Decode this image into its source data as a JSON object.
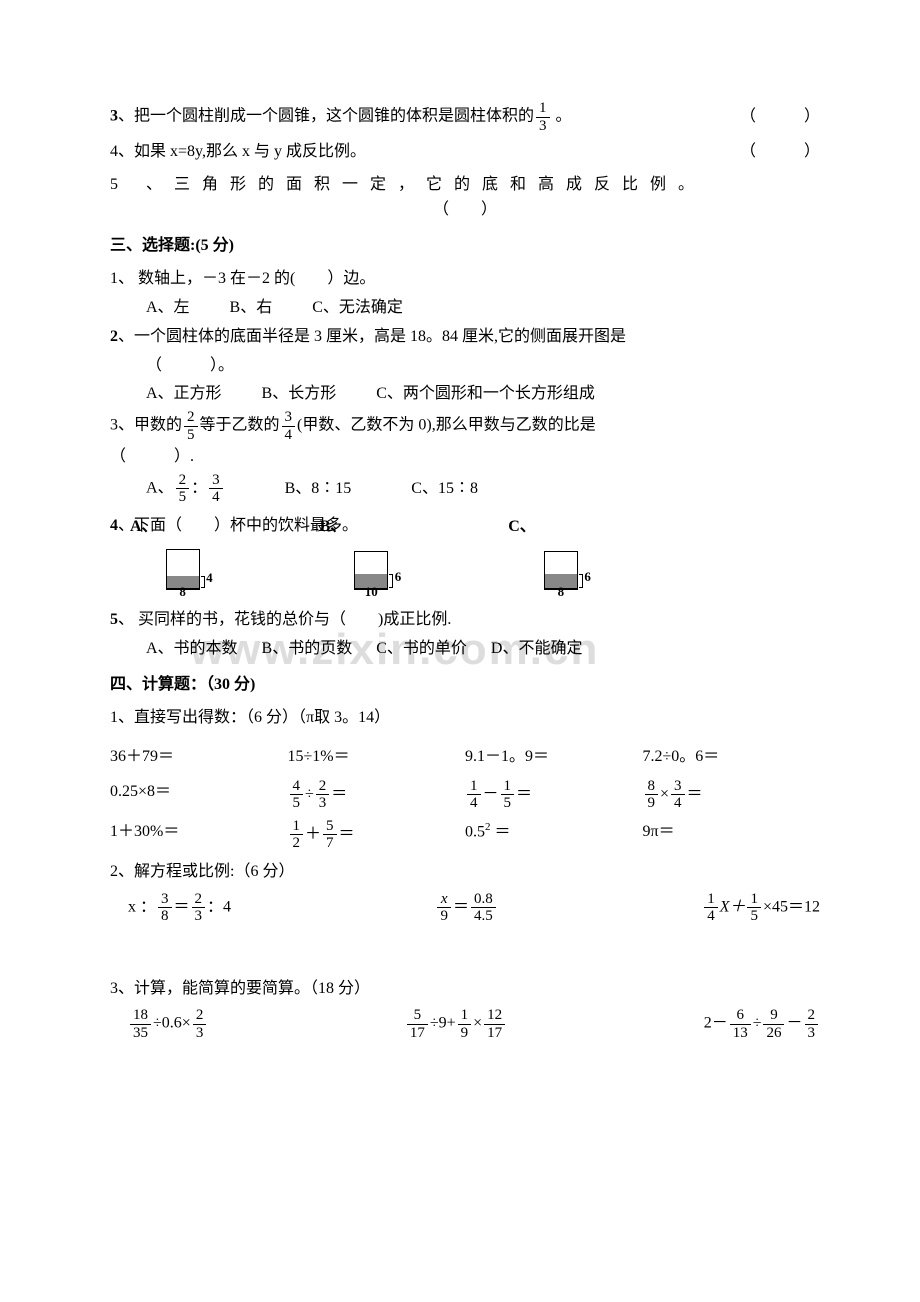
{
  "judgment": {
    "q3_prefix": "3",
    "q3_text_a": "、把一个圆柱削成一个圆锥，这个圆锥的体积是圆柱体积的",
    "q3_frac_num": "1",
    "q3_frac_den": "3",
    "q3_text_b": " 。",
    "q3_blank": "（　　　）",
    "q4_text": "4、如果 x=8y,那么 x 与 y 成反比例。",
    "q4_blank": "（　　　）",
    "q5_text": "5 、三角形的面积一定，它的底和高成反比例。",
    "q5_blank": "（　　）"
  },
  "section3": {
    "title": "三、选择题:(5 分)",
    "q1": "1、 数轴上，－3 在－2 的(　　）边。",
    "q1_opts": "A、左          B、右          C、无法确定",
    "q2_prefix": "2",
    "q2": "、一个圆柱体的底面半径是 3 厘米，高是 18。84 厘米,它的侧面展开图是",
    "q2_blank": "（　　　）。",
    "q2_opts": "A、正方形          B、长方形          C、两个圆形和一个长方形组成",
    "q3_a": "3、甲数的",
    "q3_f1_n": "2",
    "q3_f1_d": "5",
    "q3_b": "等于乙数的",
    "q3_f2_n": "3",
    "q3_f2_d": "4",
    "q3_c": "(甲数、乙数不为 0),那么甲数与乙数的比是",
    "q3_blank": "（　　　）.",
    "q3_optA_pre": "A、",
    "q3_oA_f1_n": "2",
    "q3_oA_f1_d": "5",
    "q3_oA_colon": "：",
    "q3_oA_f2_n": "3",
    "q3_oA_f2_d": "4",
    "q3_optB": "B、8∶15",
    "q3_optC": "C、15∶8",
    "q4_prefix": "4",
    "q4": "、下面（　　）杯中的饮料最多。",
    "cupA": {
      "label": "A、",
      "air_h": 26,
      "liq_h": 12,
      "h_label": "4",
      "w_label": "8"
    },
    "cupB": {
      "label": "B、",
      "air_h": 22,
      "liq_h": 14,
      "h_label": "6",
      "w_label": "10"
    },
    "cupC": {
      "label": "C、",
      "air_h": 22,
      "liq_h": 14,
      "h_label": "6",
      "w_label": "8"
    },
    "q5_prefix": "5",
    "q5": "、 买同样的书，花钱的总价与（　　)成正比例.",
    "q5_opts": "A、书的本数      B、书的页数      C、书的单价      D、不能确定"
  },
  "section4": {
    "title": "四、计算题：（30 分)",
    "p1_title": "1、直接写出得数：（6 分）（π取 3。14）",
    "r1": {
      "a": "36＋79＝",
      "b": "15÷1%＝",
      "c": "9.1－1。9＝",
      "d": "7.2÷0。6＝"
    },
    "r2": {
      "a": "0.25×8＝",
      "b_f1n": "4",
      "b_f1d": "5",
      "b_op": "÷",
      "b_f2n": "2",
      "b_f2d": "3",
      "b_eq": "＝",
      "c_f1n": "1",
      "c_f1d": "4",
      "c_op": "－",
      "c_f2n": "1",
      "c_f2d": "5",
      "c_eq": "＝",
      "d_f1n": "8",
      "d_f1d": "9",
      "d_op": "×",
      "d_f2n": "3",
      "d_f2d": "4",
      "d_eq": "＝"
    },
    "r3": {
      "a": "1＋30%＝",
      "b_f1n": "1",
      "b_f1d": "2",
      "b_op": "＋",
      "b_f2n": "5",
      "b_f2d": "7",
      "b_eq": "＝",
      "c_base": "0.5",
      "c_exp": "2",
      "c_eq": " ＝",
      "d": "9π＝"
    },
    "p2_title": "2、解方程或比例:（6 分）",
    "eq1_pre": "x ：",
    "eq1_f1n": "3",
    "eq1_f1d": "8",
    "eq1_mid": "＝",
    "eq1_f2n": "2",
    "eq1_f2d": "3",
    "eq1_suf": "：4",
    "eq2_f1n": "x",
    "eq2_f1d": "9",
    "eq2_mid": "＝",
    "eq2_f2n": "0.8",
    "eq2_f2d": "4.5",
    "eq3_f1n": "1",
    "eq3_f1d": "4",
    "eq3_X": "X＋",
    "eq3_f2n": "1",
    "eq3_f2d": "5",
    "eq3_suf": "×45＝12",
    "p3_title": "3、计算，能简算的要简算。（18 分）",
    "s1_f1n": "18",
    "s1_f1d": "35",
    "s1_a": "÷0.6×",
    "s1_f2n": "2",
    "s1_f2d": "3",
    "s2_f1n": "5",
    "s2_f1d": "17",
    "s2_a": "÷9+",
    "s2_f2n": "1",
    "s2_f2d": "9",
    "s2_b": "×",
    "s2_f3n": "12",
    "s2_f3d": "17",
    "s3_a": "2－",
    "s3_f1n": "6",
    "s3_f1d": "13",
    "s3_b": "÷",
    "s3_f2n": "9",
    "s3_f2d": "26",
    "s3_c": "－",
    "s3_f3n": "2",
    "s3_f3d": "3"
  },
  "watermark": "www.zixin.com.cn",
  "colors": {
    "text": "#000000",
    "bg": "#ffffff",
    "watermark": "#dddddd",
    "liquid": "#888888"
  }
}
